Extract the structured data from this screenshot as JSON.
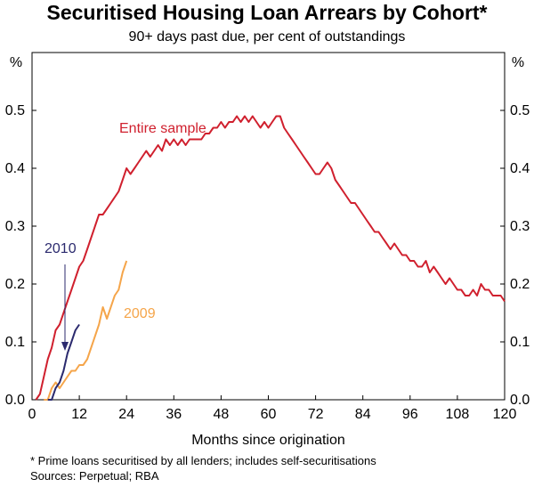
{
  "chart_data": {
    "type": "line",
    "title": "Securitised Housing Loan Arrears by Cohort*",
    "subtitle": "90+ days past due, per cent of outstandings",
    "xlabel": "Months since origination",
    "ylabel_left": "%",
    "ylabel_right": "%",
    "xlim": [
      0,
      120
    ],
    "ylim": [
      0,
      0.6
    ],
    "xticks": [
      0,
      12,
      24,
      36,
      48,
      60,
      72,
      84,
      96,
      108,
      120
    ],
    "yticks": [
      "0.0",
      "0.1",
      "0.2",
      "0.3",
      "0.4",
      "0.5"
    ],
    "grid": false,
    "series": [
      {
        "name": "Entire sample",
        "color": "#d0202e",
        "x": [
          1,
          2,
          3,
          4,
          5,
          6,
          7,
          8,
          9,
          10,
          11,
          12,
          13,
          14,
          15,
          16,
          17,
          18,
          19,
          20,
          21,
          22,
          23,
          24,
          25,
          26,
          27,
          28,
          29,
          30,
          31,
          32,
          33,
          34,
          35,
          36,
          37,
          38,
          39,
          40,
          41,
          42,
          43,
          44,
          45,
          46,
          47,
          48,
          49,
          50,
          51,
          52,
          53,
          54,
          55,
          56,
          57,
          58,
          59,
          60,
          61,
          62,
          63,
          64,
          65,
          66,
          67,
          68,
          69,
          70,
          71,
          72,
          73,
          74,
          75,
          76,
          77,
          78,
          79,
          80,
          81,
          82,
          83,
          84,
          85,
          86,
          87,
          88,
          89,
          90,
          91,
          92,
          93,
          94,
          95,
          96,
          97,
          98,
          99,
          100,
          101,
          102,
          103,
          104,
          105,
          106,
          107,
          108,
          109,
          110,
          111,
          112,
          113,
          114,
          115,
          116,
          117,
          118,
          119,
          120
        ],
        "values": [
          0.0,
          0.01,
          0.04,
          0.07,
          0.09,
          0.12,
          0.13,
          0.15,
          0.17,
          0.19,
          0.21,
          0.23,
          0.24,
          0.26,
          0.28,
          0.3,
          0.32,
          0.32,
          0.33,
          0.34,
          0.35,
          0.36,
          0.38,
          0.4,
          0.39,
          0.4,
          0.41,
          0.42,
          0.43,
          0.42,
          0.43,
          0.44,
          0.43,
          0.45,
          0.44,
          0.45,
          0.44,
          0.45,
          0.44,
          0.45,
          0.45,
          0.45,
          0.45,
          0.46,
          0.46,
          0.47,
          0.47,
          0.48,
          0.47,
          0.48,
          0.48,
          0.49,
          0.48,
          0.49,
          0.48,
          0.49,
          0.48,
          0.47,
          0.48,
          0.47,
          0.48,
          0.49,
          0.49,
          0.47,
          0.46,
          0.45,
          0.44,
          0.43,
          0.42,
          0.41,
          0.4,
          0.39,
          0.39,
          0.4,
          0.41,
          0.4,
          0.38,
          0.37,
          0.36,
          0.35,
          0.34,
          0.34,
          0.33,
          0.32,
          0.31,
          0.3,
          0.29,
          0.29,
          0.28,
          0.27,
          0.26,
          0.27,
          0.26,
          0.25,
          0.25,
          0.24,
          0.24,
          0.23,
          0.23,
          0.24,
          0.22,
          0.23,
          0.22,
          0.21,
          0.2,
          0.21,
          0.2,
          0.19,
          0.19,
          0.18,
          0.18,
          0.19,
          0.18,
          0.2,
          0.19,
          0.19,
          0.18,
          0.18,
          0.18,
          0.17
        ]
      },
      {
        "name": "2009",
        "color": "#f5a54a",
        "x": [
          3,
          4,
          5,
          6,
          7,
          8,
          9,
          10,
          11,
          12,
          13,
          14,
          15,
          16,
          17,
          18,
          19,
          20,
          21,
          22,
          23,
          24
        ],
        "values": [
          0.0,
          0.0,
          0.02,
          0.03,
          0.02,
          0.03,
          0.04,
          0.05,
          0.05,
          0.06,
          0.06,
          0.07,
          0.09,
          0.11,
          0.13,
          0.16,
          0.14,
          0.16,
          0.18,
          0.19,
          0.22,
          0.24
        ]
      },
      {
        "name": "2010",
        "color": "#2b2a6e",
        "x": [
          4,
          5,
          6,
          7,
          8,
          9,
          10,
          11,
          12
        ],
        "values": [
          0.0,
          0.0,
          0.02,
          0.03,
          0.05,
          0.08,
          0.1,
          0.12,
          0.13
        ]
      }
    ],
    "annotations": [
      {
        "text": "Entire sample",
        "color": "#d0202e"
      },
      {
        "text": "2009",
        "color": "#f5a54a"
      },
      {
        "text": "2010",
        "color": "#2b2a6e"
      }
    ]
  },
  "footnotes": {
    "note": "*  Prime loans securitised by all lenders; includes self-securitisations",
    "sources": "Sources: Perpetual; RBA"
  }
}
